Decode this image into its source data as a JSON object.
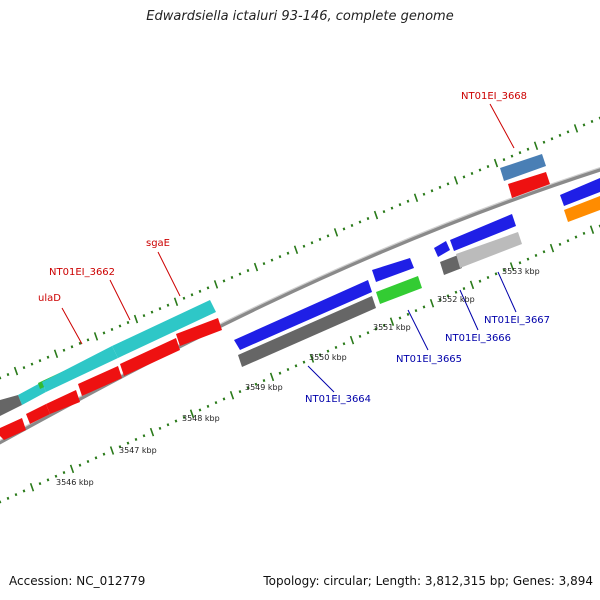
{
  "title": "Edwardsiella ictaluri 93-146, complete genome",
  "footer": {
    "accession": "Accession: NC_012779",
    "summary": "Topology: circular; Length: 3,812,315 bp; Genes: 3,894"
  },
  "colors": {
    "label_red": "#cc0000",
    "label_blue": "#0000aa",
    "tick_green": "#2a7a1a",
    "backbone": "#888888"
  },
  "kbp_labels": [
    "3546 kbp",
    "3547 kbp",
    "3548 kbp",
    "3549 kbp",
    "3550 kbp",
    "3551 kbp",
    "3552 kbp",
    "3553 kbp"
  ],
  "gene_labels_top": [
    {
      "text": "ulaD",
      "color": "red"
    },
    {
      "text": "NT01EI_3662",
      "color": "red"
    },
    {
      "text": "sgaE",
      "color": "red"
    },
    {
      "text": "NT01EI_3668",
      "color": "red"
    }
  ],
  "gene_labels_bottom": [
    {
      "text": "NT01EI_3664",
      "color": "blue"
    },
    {
      "text": "NT01EI_3665",
      "color": "blue"
    },
    {
      "text": "NT01EI_3666",
      "color": "blue"
    },
    {
      "text": "NT01EI_3667",
      "color": "blue"
    }
  ]
}
